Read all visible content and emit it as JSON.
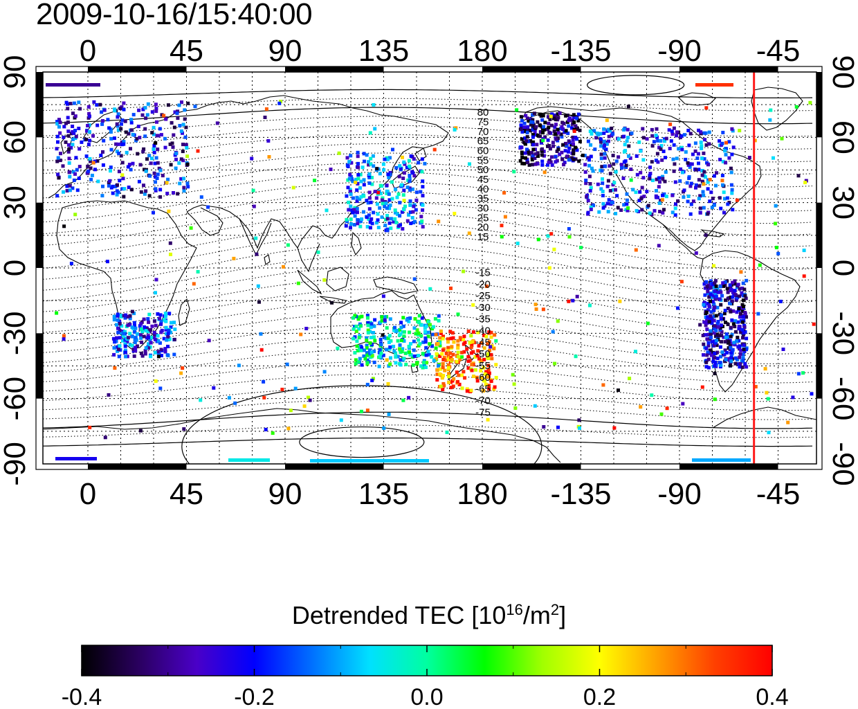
{
  "map": {
    "timestamp": "2009-10-16/15:40:00",
    "projection": "equirectangular, center longitude 160",
    "lon_ticks": [
      "0",
      "45",
      "90",
      "135",
      "180",
      "-135",
      "-90",
      "-45"
    ],
    "lat_ticks": [
      "90",
      "60",
      "30",
      "0",
      "-30",
      "-60",
      "-90"
    ],
    "contour_labels_north": [
      "80",
      "75",
      "70",
      "65",
      "60",
      "55",
      "50",
      "45",
      "40",
      "35",
      "30",
      "25",
      "20",
      "15"
    ],
    "contour_labels_south": [
      "-15",
      "-20",
      "-25",
      "-30",
      "-35",
      "-40",
      "-45",
      "-50",
      "-55",
      "-60",
      "-65",
      "-70",
      "-75"
    ],
    "terminator_longitude": -56,
    "terminator_color": "#ff1a1a"
  },
  "colorbar": {
    "title_prefix": "Detrended TEC  [10",
    "title_exp1": "16",
    "title_mid": "/m",
    "title_exp2": "2",
    "title_suffix": "]",
    "tick_labels": [
      "-0.4",
      "-0.2",
      "0.0",
      "0.2",
      "0.4"
    ],
    "range": [
      -0.4,
      0.4
    ],
    "colors": [
      "#000000",
      "#2a0060",
      "#4a00c8",
      "#0000ff",
      "#0070ff",
      "#00e0ff",
      "#00ffa0",
      "#00ff00",
      "#a0ff00",
      "#ffff00",
      "#ffa000",
      "#ff4000",
      "#ff0000"
    ]
  },
  "tec_patches": [
    {
      "lon": 15,
      "lat": 55,
      "value": -0.22,
      "region": "Europe"
    },
    {
      "lon": -100,
      "lat": 45,
      "value": -0.2,
      "region": "North America"
    },
    {
      "lon": 135,
      "lat": 36,
      "value": -0.15,
      "region": "Japan"
    },
    {
      "lon": 140,
      "lat": -33,
      "value": -0.05,
      "region": "Australia"
    },
    {
      "lon": 25,
      "lat": -30,
      "value": -0.18,
      "region": "South Africa"
    },
    {
      "lon": 172,
      "lat": -42,
      "value": 0.3,
      "region": "New Zealand"
    },
    {
      "lon": -150,
      "lat": 60,
      "value": -0.3,
      "region": "Alaska"
    },
    {
      "lon": -70,
      "lat": -25,
      "value": -0.25,
      "region": "South America"
    }
  ]
}
